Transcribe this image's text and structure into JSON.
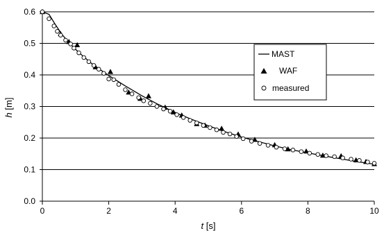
{
  "chart_data": {
    "type": "line",
    "title": "",
    "xlabel": {
      "var": "t",
      "unit": " [s]"
    },
    "ylabel": {
      "var": "h",
      "unit": " [m]"
    },
    "xlim": [
      0,
      10
    ],
    "ylim": [
      0,
      0.6
    ],
    "x_ticks": [
      0,
      2,
      4,
      6,
      8,
      10
    ],
    "x_tick_labels": [
      "0",
      "2",
      "4",
      "6",
      "8",
      "10"
    ],
    "y_ticks": [
      0,
      0.1,
      0.2,
      0.3,
      0.4,
      0.5,
      0.6
    ],
    "y_tick_labels": [
      "0.0",
      "0.1",
      "0.2",
      "0.3",
      "0.4",
      "0.5",
      "0.6"
    ],
    "grid": "horizontal",
    "legend_position": "right",
    "series": [
      {
        "name": "MAST",
        "style": "line",
        "color": "#000000",
        "x": [
          0,
          0.2,
          0.4,
          0.6,
          0.8,
          1.0,
          1.25,
          1.5,
          1.75,
          2.0,
          2.5,
          3.0,
          3.5,
          4.0,
          4.5,
          5.0,
          5.5,
          6.0,
          6.5,
          7.0,
          7.5,
          8.0,
          8.5,
          9.0,
          9.5,
          10.0
        ],
        "y": [
          0.6,
          0.592,
          0.558,
          0.527,
          0.503,
          0.481,
          0.457,
          0.435,
          0.416,
          0.398,
          0.365,
          0.334,
          0.306,
          0.281,
          0.259,
          0.239,
          0.22,
          0.203,
          0.189,
          0.175,
          0.163,
          0.153,
          0.143,
          0.134,
          0.125,
          0.117
        ]
      },
      {
        "name": "WAF",
        "style": "triangle",
        "color": "#000000",
        "x": [
          0,
          0.55,
          0.8,
          1.05,
          1.6,
          2.05,
          2.6,
          2.95,
          3.2,
          3.7,
          3.95,
          4.2,
          4.65,
          4.9,
          5.4,
          5.9,
          6.4,
          7.0,
          7.4,
          7.95,
          8.45,
          9.0,
          9.45,
          9.75,
          10.0
        ],
        "y": [
          0.6,
          0.53,
          0.505,
          0.495,
          0.425,
          0.41,
          0.345,
          0.325,
          0.333,
          0.297,
          0.282,
          0.272,
          0.245,
          0.24,
          0.23,
          0.212,
          0.195,
          0.178,
          0.165,
          0.158,
          0.145,
          0.143,
          0.13,
          0.125,
          0.118
        ]
      },
      {
        "name": "measured",
        "style": "circle",
        "color": "#000000",
        "x": [
          0.0,
          0.2,
          0.35,
          0.45,
          0.55,
          0.7,
          0.85,
          0.95,
          1.1,
          1.25,
          1.4,
          1.55,
          1.7,
          1.85,
          2.0,
          2.15,
          2.3,
          2.5,
          2.7,
          2.9,
          3.05,
          3.25,
          3.45,
          3.65,
          3.85,
          4.05,
          4.25,
          4.45,
          4.65,
          4.85,
          5.05,
          5.25,
          5.45,
          5.65,
          5.85,
          6.05,
          6.3,
          6.55,
          6.8,
          7.05,
          7.3,
          7.55,
          7.8,
          8.05,
          8.3,
          8.55,
          8.8,
          9.05,
          9.3,
          9.55,
          9.8,
          10.0
        ],
        "y": [
          0.6,
          0.578,
          0.555,
          0.538,
          0.526,
          0.51,
          0.498,
          0.485,
          0.47,
          0.455,
          0.442,
          0.43,
          0.418,
          0.405,
          0.387,
          0.385,
          0.37,
          0.353,
          0.34,
          0.328,
          0.318,
          0.31,
          0.3,
          0.292,
          0.285,
          0.274,
          0.265,
          0.256,
          0.248,
          0.24,
          0.233,
          0.226,
          0.218,
          0.213,
          0.205,
          0.198,
          0.19,
          0.183,
          0.177,
          0.171,
          0.166,
          0.162,
          0.157,
          0.152,
          0.148,
          0.144,
          0.141,
          0.137,
          0.133,
          0.129,
          0.124,
          0.12
        ]
      }
    ]
  }
}
